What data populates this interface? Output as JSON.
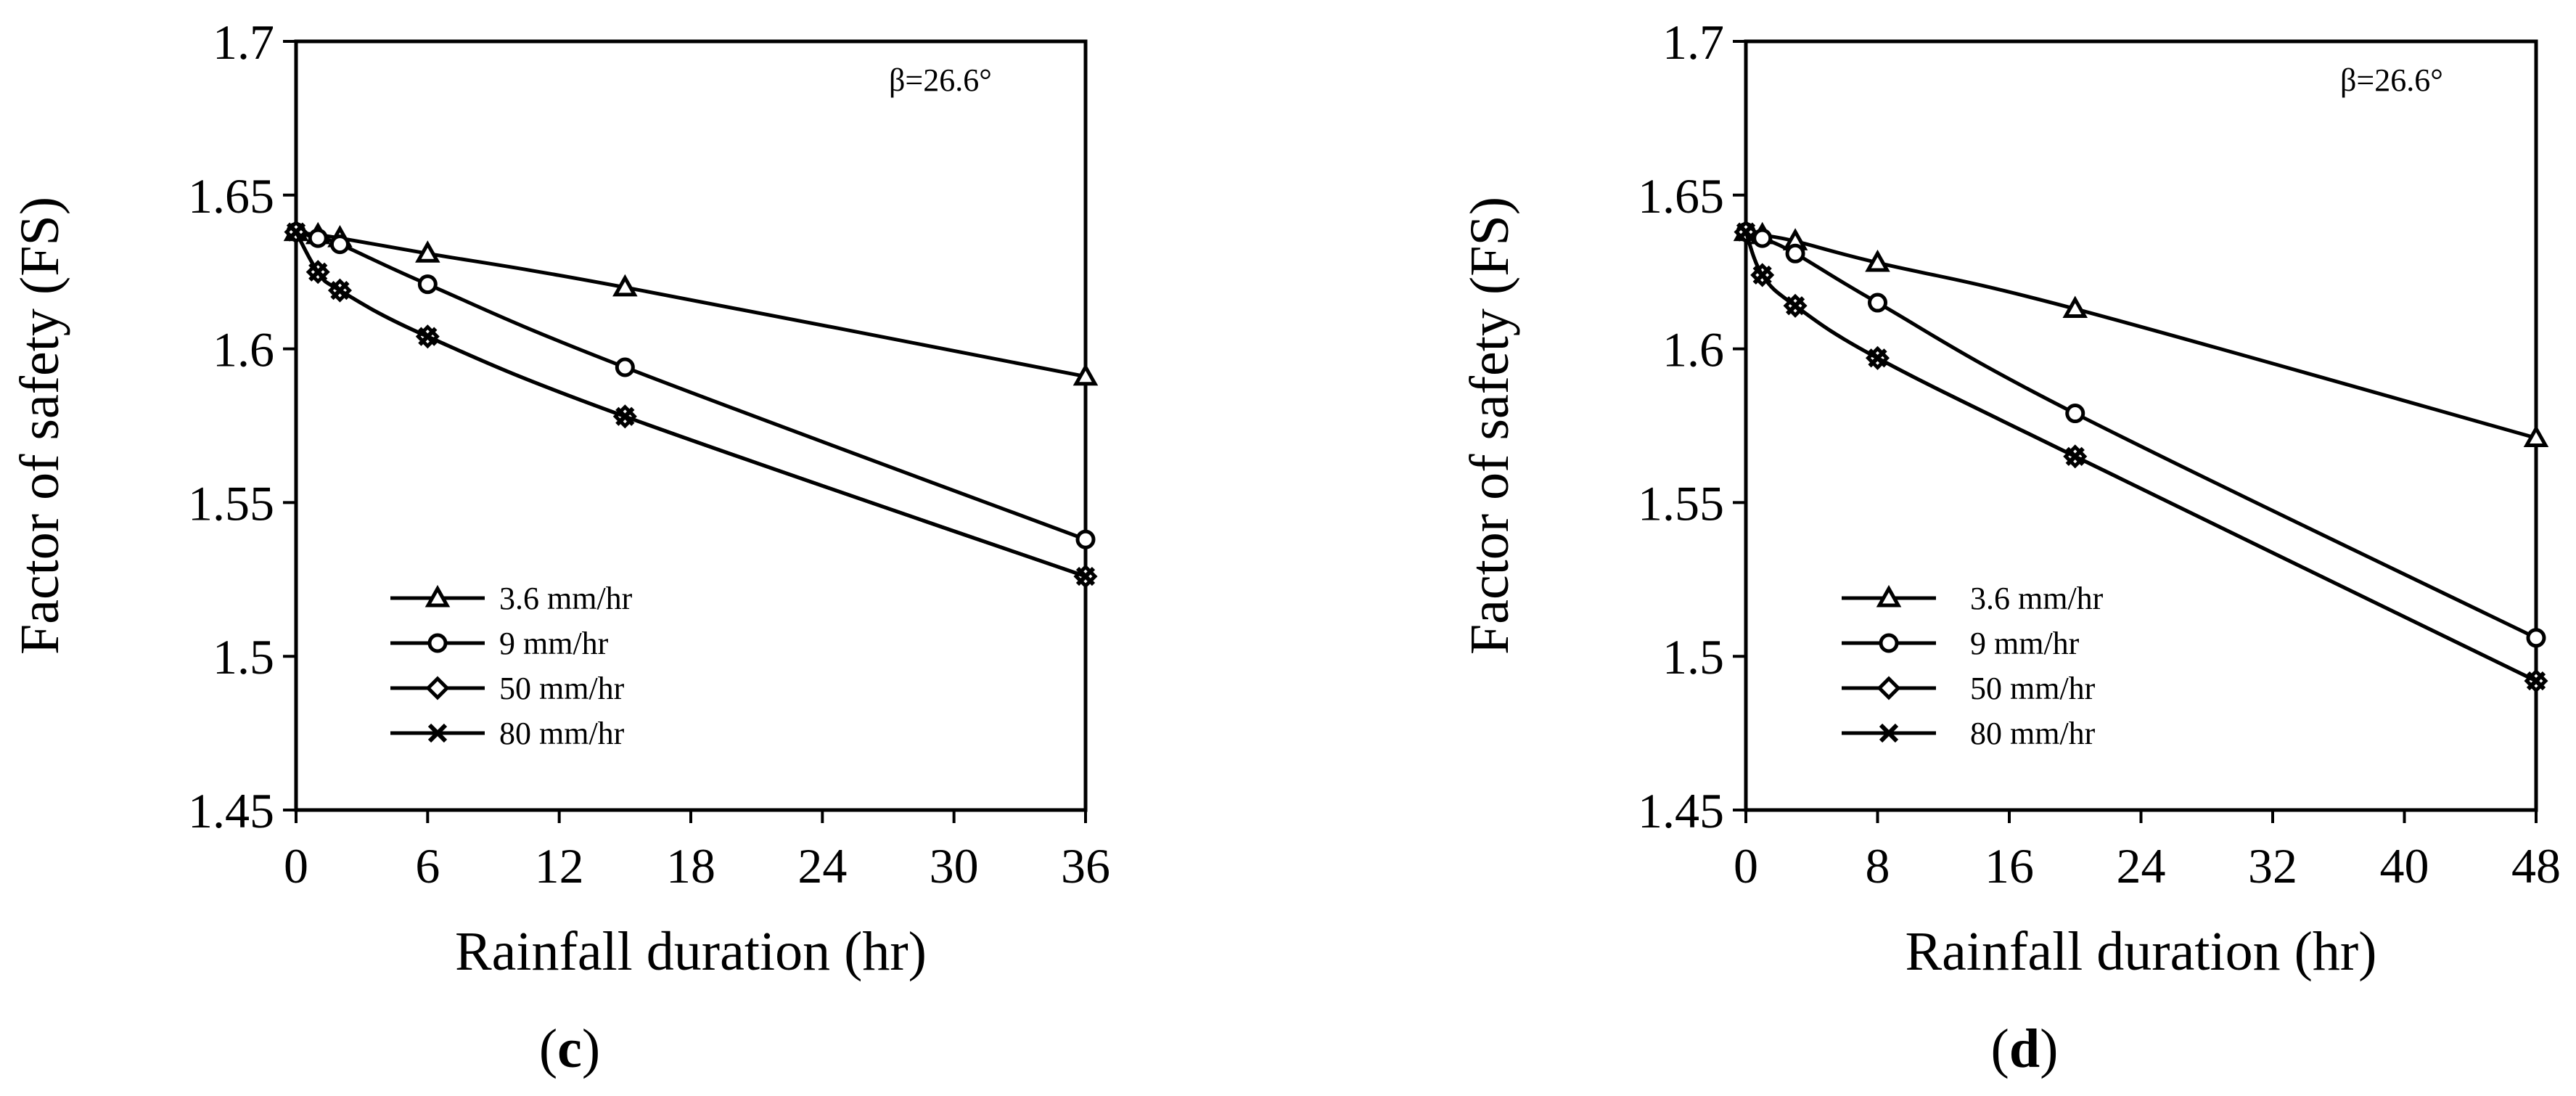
{
  "chart_data": [
    {
      "type": "line",
      "panel_label_prefix": "(",
      "panel_label": "c",
      "panel_label_suffix": ")",
      "xlabel": "Rainfall duration (hr)",
      "ylabel": "Factor of safety (FS)",
      "annotation": "β=26.6°",
      "xlim": [
        0,
        36
      ],
      "ylim": [
        1.45,
        1.7
      ],
      "xticks": [
        0,
        6,
        12,
        18,
        24,
        30,
        36
      ],
      "yticks": [
        1.45,
        1.5,
        1.55,
        1.6,
        1.65,
        1.7
      ],
      "ytick_labels": [
        "1.45",
        "1.5",
        "1.55",
        "1.6",
        "1.65",
        "1.7"
      ],
      "legend_position": "lower-left",
      "series": [
        {
          "name": "3.6 mm/hr",
          "marker": "triangle",
          "x": [
            0,
            1,
            2,
            6,
            15,
            36
          ],
          "y": [
            1.638,
            1.637,
            1.636,
            1.631,
            1.62,
            1.591
          ]
        },
        {
          "name": "9 mm/hr",
          "marker": "circle",
          "x": [
            0,
            1,
            2,
            6,
            15,
            36
          ],
          "y": [
            1.638,
            1.636,
            1.634,
            1.621,
            1.594,
            1.538
          ]
        },
        {
          "name": "50 mm/hr",
          "marker": "diamond",
          "x": [
            0,
            1,
            2,
            6,
            15,
            36
          ],
          "y": [
            1.638,
            1.625,
            1.619,
            1.604,
            1.578,
            1.526
          ]
        },
        {
          "name": "80 mm/hr",
          "marker": "x",
          "x": [
            0,
            1,
            2,
            6,
            15,
            36
          ],
          "y": [
            1.638,
            1.625,
            1.619,
            1.604,
            1.578,
            1.526
          ]
        }
      ]
    },
    {
      "type": "line",
      "panel_label_prefix": "(",
      "panel_label": "d",
      "panel_label_suffix": ")",
      "xlabel": "Rainfall duration (hr)",
      "ylabel": "Factor of safety (FS)",
      "annotation": "β=26.6°",
      "xlim": [
        0,
        48
      ],
      "ylim": [
        1.45,
        1.7
      ],
      "xticks": [
        0,
        8,
        16,
        24,
        32,
        40,
        48
      ],
      "yticks": [
        1.45,
        1.5,
        1.55,
        1.6,
        1.65,
        1.7
      ],
      "ytick_labels": [
        "1.45",
        "1.5",
        "1.55",
        "1.6",
        "1.65",
        "1.7"
      ],
      "legend_position": "lower-left",
      "series": [
        {
          "name": "3.6 mm/hr",
          "marker": "triangle",
          "x": [
            0,
            1,
            3,
            8,
            20,
            48
          ],
          "y": [
            1.638,
            1.637,
            1.635,
            1.628,
            1.613,
            1.571
          ]
        },
        {
          "name": "9 mm/hr",
          "marker": "circle",
          "x": [
            0,
            1,
            3,
            8,
            20,
            48
          ],
          "y": [
            1.638,
            1.636,
            1.631,
            1.615,
            1.579,
            1.506
          ]
        },
        {
          "name": "50 mm/hr",
          "marker": "diamond",
          "x": [
            0,
            1,
            3,
            8,
            20,
            48
          ],
          "y": [
            1.638,
            1.624,
            1.614,
            1.597,
            1.565,
            1.492
          ]
        },
        {
          "name": "80 mm/hr",
          "marker": "x",
          "x": [
            0,
            1,
            3,
            8,
            20,
            48
          ],
          "y": [
            1.638,
            1.624,
            1.614,
            1.597,
            1.565,
            1.492
          ]
        }
      ]
    }
  ]
}
